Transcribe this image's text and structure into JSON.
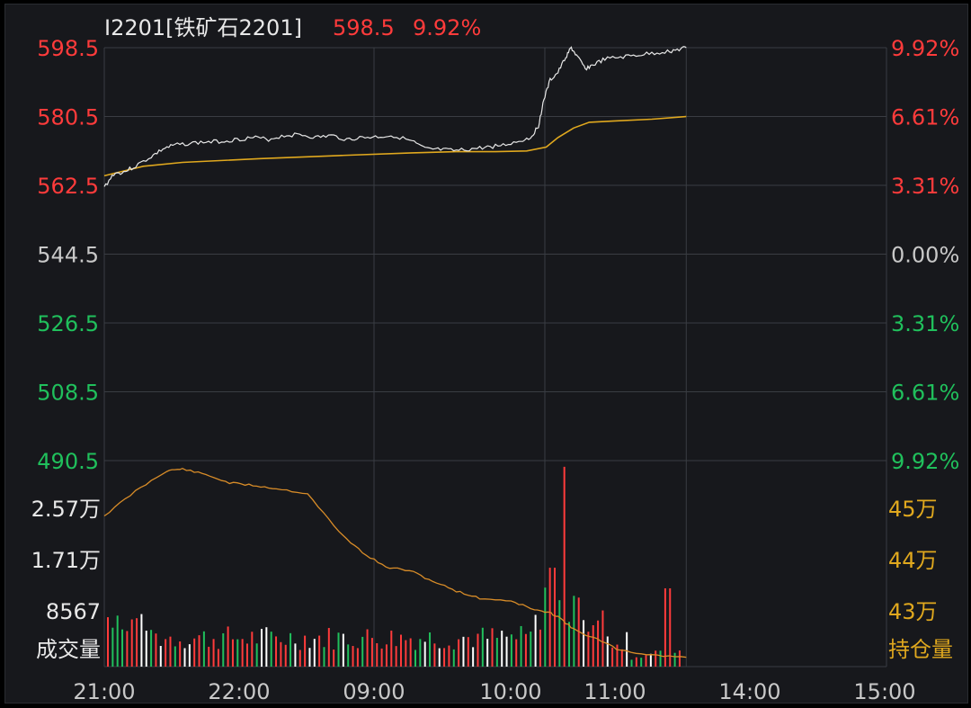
{
  "header": {
    "symbol": "I2201[铁矿石2201]",
    "price": "598.5",
    "change_pct": "9.92%"
  },
  "colors": {
    "background": "#17181c",
    "grid": "#3a3d43",
    "up_red": "#ff3b3b",
    "down_green": "#20c05c",
    "neutral": "#c8c8c8",
    "price_line": "#e8e8e8",
    "avg_line": "#e0a81e",
    "oi_line": "#d88c28",
    "text_white": "#e8e8e8",
    "text_gold": "#e0a81e"
  },
  "chart_data": [
    {
      "type": "line",
      "title": "I2201[铁矿石2201] 598.5 9.92%",
      "prev_close": 544.5,
      "ylim": [
        490.5,
        598.5
      ],
      "y_ticks_left": [
        "598.5",
        "580.5",
        "562.5",
        "544.5",
        "526.5",
        "508.5",
        "490.5"
      ],
      "y_ticks_right": [
        "9.92%",
        "6.61%",
        "3.31%",
        "0.00%",
        "3.31%",
        "6.61%",
        "9.92%"
      ],
      "x_ticks": [
        "21:00",
        "22:00",
        "09:00",
        "10:00",
        "11:00",
        "14:00",
        "15:00"
      ],
      "session_end_x": 0.744,
      "series": [
        {
          "name": "",
          "role": "price",
          "x": [
            0.0,
            0.012,
            0.025,
            0.04,
            0.06,
            0.075,
            0.09,
            0.11,
            0.13,
            0.15,
            0.17,
            0.19,
            0.21,
            0.23,
            0.25,
            0.27,
            0.29,
            0.31,
            0.33,
            0.35,
            0.37,
            0.3935,
            0.41,
            0.43,
            0.45,
            0.47,
            0.49,
            0.51,
            0.53,
            0.545,
            0.555,
            0.562,
            0.57,
            0.58,
            0.59,
            0.597,
            0.605,
            0.615,
            0.625,
            0.64,
            0.66,
            0.68,
            0.7,
            0.72,
            0.735,
            0.744
          ],
          "values": [
            562.0,
            565.5,
            566.0,
            567.5,
            570.0,
            572.0,
            573.0,
            573.5,
            573.8,
            574.0,
            574.5,
            575.0,
            574.5,
            575.5,
            575.8,
            575.0,
            575.5,
            574.5,
            575.0,
            575.2,
            575.5,
            574.0,
            572.0,
            571.8,
            571.5,
            572.0,
            572.5,
            573.0,
            574.0,
            575.0,
            578.0,
            585.0,
            590.0,
            592.0,
            596.0,
            598.5,
            596.0,
            593.0,
            594.0,
            595.5,
            596.0,
            596.5,
            597.0,
            597.5,
            598.0,
            598.5
          ]
        },
        {
          "name": "",
          "role": "average",
          "x": [
            0.0,
            0.02,
            0.05,
            0.1,
            0.2,
            0.3,
            0.3935,
            0.45,
            0.5,
            0.54,
            0.565,
            0.58,
            0.6,
            0.62,
            0.65,
            0.7,
            0.744
          ],
          "values": [
            565.0,
            566.0,
            567.5,
            568.5,
            569.5,
            570.3,
            571.0,
            571.3,
            571.3,
            571.5,
            572.5,
            575.0,
            577.5,
            579.0,
            579.3,
            579.8,
            580.5
          ]
        }
      ]
    },
    {
      "type": "bar",
      "title": "",
      "y_ticks_left": [
        "2.57万",
        "1.71万",
        "8567",
        "成交量"
      ],
      "y_ticks_right": [
        "45万",
        "44万",
        "43万",
        "持仓量"
      ],
      "volume_max": 38000,
      "volume_scale": {
        "2.57万": 25700,
        "1.71万": 17100,
        "8567": 8567
      },
      "bar_count": 120,
      "oi_series": {
        "name": "",
        "x": [
          0.0,
          0.04,
          0.08,
          0.1,
          0.13,
          0.16,
          0.19,
          0.22,
          0.26,
          0.3,
          0.33,
          0.36,
          0.39,
          0.42,
          0.45,
          0.48,
          0.52,
          0.55,
          0.57,
          0.58,
          0.6,
          0.63,
          0.66,
          0.7,
          0.744
        ],
        "values": [
          453500,
          456500,
          459000,
          459200,
          458500,
          457500,
          457200,
          456800,
          456200,
          451500,
          449000,
          447200,
          446800,
          445500,
          444300,
          443400,
          443100,
          442000,
          441600,
          441200,
          439600,
          438400,
          437000,
          436500,
          436200
        ]
      }
    }
  ]
}
